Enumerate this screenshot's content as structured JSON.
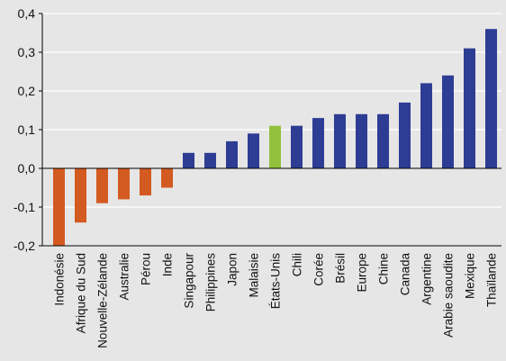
{
  "chart_data": {
    "type": "bar",
    "categories": [
      "Indonésie",
      "Afrique du Sud",
      "Nouvelle-Zélande",
      "Australie",
      "Pérou",
      "Inde",
      "Singapour",
      "Philippines",
      "Japon",
      "Malaisie",
      "États-Unis",
      "Chili",
      "Corée",
      "Brésil",
      "Europe",
      "Chine",
      "Canada",
      "Argentine",
      "Arabie saoudite",
      "Mexique",
      "Thaïlande"
    ],
    "values": [
      -0.2,
      -0.14,
      -0.09,
      -0.08,
      -0.07,
      -0.05,
      0.04,
      0.04,
      0.07,
      0.09,
      0.11,
      0.11,
      0.13,
      0.14,
      0.14,
      0.14,
      0.17,
      0.22,
      0.24,
      0.31,
      0.36
    ],
    "bar_colors": [
      "#d35a20",
      "#d35a20",
      "#d35a20",
      "#d35a20",
      "#d35a20",
      "#d35a20",
      "#2e3d94",
      "#2e3d94",
      "#2e3d94",
      "#2e3d94",
      "#93c13e",
      "#2e3d94",
      "#2e3d94",
      "#2e3d94",
      "#2e3d94",
      "#2e3d94",
      "#2e3d94",
      "#2e3d94",
      "#2e3d94",
      "#2e3d94",
      "#2e3d94"
    ],
    "y_ticks": [
      -0.2,
      -0.1,
      0.0,
      0.1,
      0.2,
      0.3,
      0.4
    ],
    "y_tick_labels": [
      "-0,2",
      "-0,1",
      "0,0",
      "0,1",
      "0,2",
      "0,3",
      "0,4"
    ],
    "ylim": [
      -0.2,
      0.4
    ],
    "title": "",
    "xlabel": "",
    "ylabel": "",
    "grid": true,
    "grid_color": "#ffffff",
    "background": "#e6e6e6",
    "axis_color": "#000000"
  }
}
